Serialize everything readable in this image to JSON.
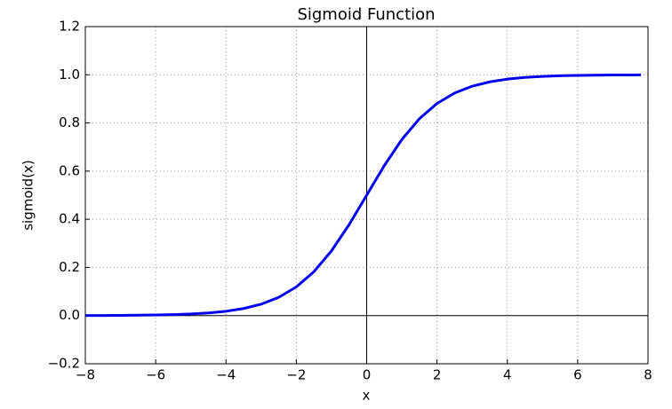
{
  "chart_data": {
    "type": "line",
    "title": "Sigmoid Function",
    "x_label": "x",
    "y_label": "sigmoid(x)",
    "x": [
      -8,
      -7.5,
      -7,
      -6.5,
      -6,
      -5.5,
      -5,
      -4.5,
      -4,
      -3.5,
      -3,
      -2.5,
      -2,
      -1.5,
      -1,
      -0.5,
      0,
      0.5,
      1,
      1.5,
      2,
      2.5,
      3,
      3.5,
      4,
      4.5,
      5,
      5.5,
      6,
      6.5,
      7,
      7.5,
      7.8
    ],
    "series": [
      {
        "name": "sigmoid",
        "color": "#0000ee",
        "values": [
          0.0003,
          0.00055,
          0.00091,
          0.0015,
          0.00247,
          0.00407,
          0.00669,
          0.011,
          0.018,
          0.0293,
          0.0474,
          0.0759,
          0.1192,
          0.1824,
          0.2689,
          0.3775,
          0.5,
          0.6225,
          0.7311,
          0.8176,
          0.8808,
          0.9241,
          0.9526,
          0.9707,
          0.982,
          0.989,
          0.9933,
          0.9959,
          0.9975,
          0.9985,
          0.9991,
          0.9994,
          0.9996
        ]
      }
    ],
    "xlim": [
      -8,
      8
    ],
    "xticks": [
      {
        "value": -8,
        "label": "−8"
      },
      {
        "value": -6,
        "label": "−6"
      },
      {
        "value": -4,
        "label": "−4"
      },
      {
        "value": -2,
        "label": "−2"
      },
      0,
      2,
      4,
      6,
      8
    ],
    "ylim": [
      -0.2,
      1.2
    ],
    "yticks": [
      {
        "value": -0.2,
        "label": "−0.2"
      },
      {
        "value": 0,
        "label": "0.0"
      },
      0.2,
      0.4,
      0.6,
      0.8,
      {
        "value": 1,
        "label": "1.0"
      },
      1.2
    ],
    "grid": true
  }
}
